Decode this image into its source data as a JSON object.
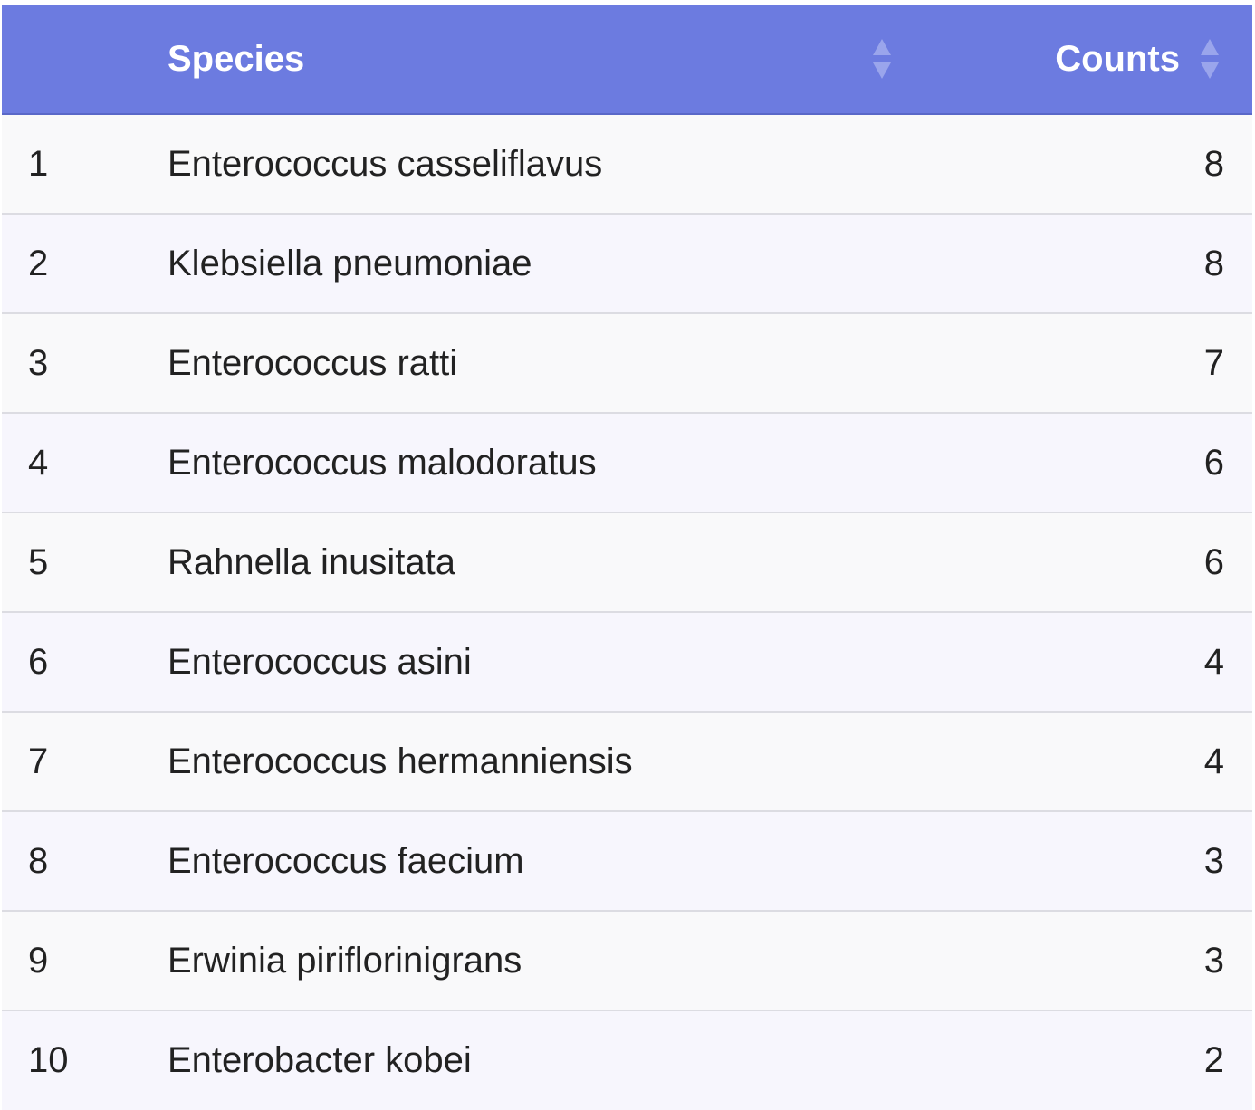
{
  "table": {
    "headers": {
      "index": "",
      "species": "Species",
      "counts": "Counts"
    },
    "rows": [
      {
        "index": "1",
        "species": "Enterococcus casseliflavus",
        "counts": "8"
      },
      {
        "index": "2",
        "species": "Klebsiella pneumoniae",
        "counts": "8"
      },
      {
        "index": "3",
        "species": "Enterococcus ratti",
        "counts": "7"
      },
      {
        "index": "4",
        "species": "Enterococcus malodoratus",
        "counts": "6"
      },
      {
        "index": "5",
        "species": "Rahnella inusitata",
        "counts": "6"
      },
      {
        "index": "6",
        "species": "Enterococcus asini",
        "counts": "4"
      },
      {
        "index": "7",
        "species": "Enterococcus hermanniensis",
        "counts": "4"
      },
      {
        "index": "8",
        "species": "Enterococcus faecium",
        "counts": "3"
      },
      {
        "index": "9",
        "species": "Erwinia piriflorinigrans",
        "counts": "3"
      },
      {
        "index": "10",
        "species": "Enterobacter kobei",
        "counts": "2"
      }
    ]
  },
  "icons": {
    "sort": "sort-icon"
  },
  "colors": {
    "header_bg": "#6c7be0",
    "header_text": "#ffffff",
    "sort_icon": "#9aa5ec",
    "row_odd": "#f9f9fa",
    "row_even": "#f7f6fd",
    "row_border": "#dcdce2"
  }
}
